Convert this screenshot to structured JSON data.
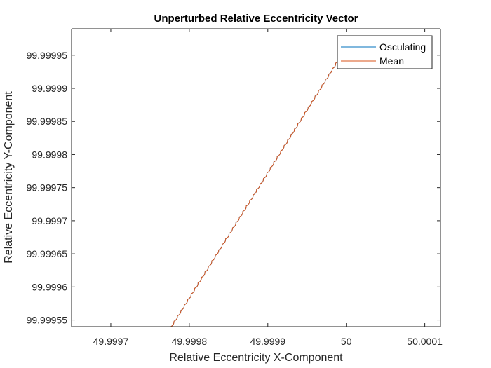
{
  "chart_data": {
    "type": "line",
    "title": "Unperturbed Relative Eccentricity Vector",
    "xlabel": "Relative Eccentricity X-Component",
    "ylabel": "Relative Eccentricity Y-Component",
    "xlim": [
      49.99965,
      50.00012
    ],
    "ylim": [
      99.99954,
      99.99999
    ],
    "xticks": [
      49.9997,
      49.9998,
      49.9999,
      50,
      50.0001
    ],
    "xtick_labels": [
      "49.9997",
      "49.9998",
      "49.9999",
      "50",
      "50.0001"
    ],
    "yticks": [
      99.99955,
      99.9996,
      99.99965,
      99.9997,
      99.99975,
      99.9998,
      99.99985,
      99.9999,
      99.99995
    ],
    "ytick_labels": [
      "99.99955",
      "99.9996",
      "99.99965",
      "99.9997",
      "99.99975",
      "99.9998",
      "99.99985",
      "99.9999",
      "99.99995"
    ],
    "grid": false,
    "legend_position": "top-right",
    "colors": {
      "osculating": "#0072BD",
      "mean": "#D95319",
      "axis": "#262626"
    },
    "series": [
      {
        "name": "Osculating",
        "color": "#0072BD",
        "x": [
          49.9997761,
          49.9998024,
          49.9998287,
          49.999855,
          49.9998813,
          49.9999076,
          49.9999339,
          49.9999602,
          49.9999865,
          50.0000003
        ],
        "y": [
          99.9995398,
          99.9995896,
          99.9996394,
          99.9996892,
          99.999739,
          99.9997888,
          99.9998386,
          99.9998884,
          99.9999382,
          99.9999643
        ]
      },
      {
        "name": "Mean",
        "color": "#D95319",
        "x": [
          49.9997761,
          49.9998024,
          49.9998287,
          49.999855,
          49.9998813,
          49.9999076,
          49.9999339,
          49.9999602,
          49.9999865,
          50.0000003
        ],
        "y": [
          99.9995398,
          99.9995896,
          99.9996394,
          99.9996892,
          99.999739,
          99.9997888,
          99.9998386,
          99.9998884,
          99.9999382,
          99.9999643
        ]
      }
    ]
  }
}
